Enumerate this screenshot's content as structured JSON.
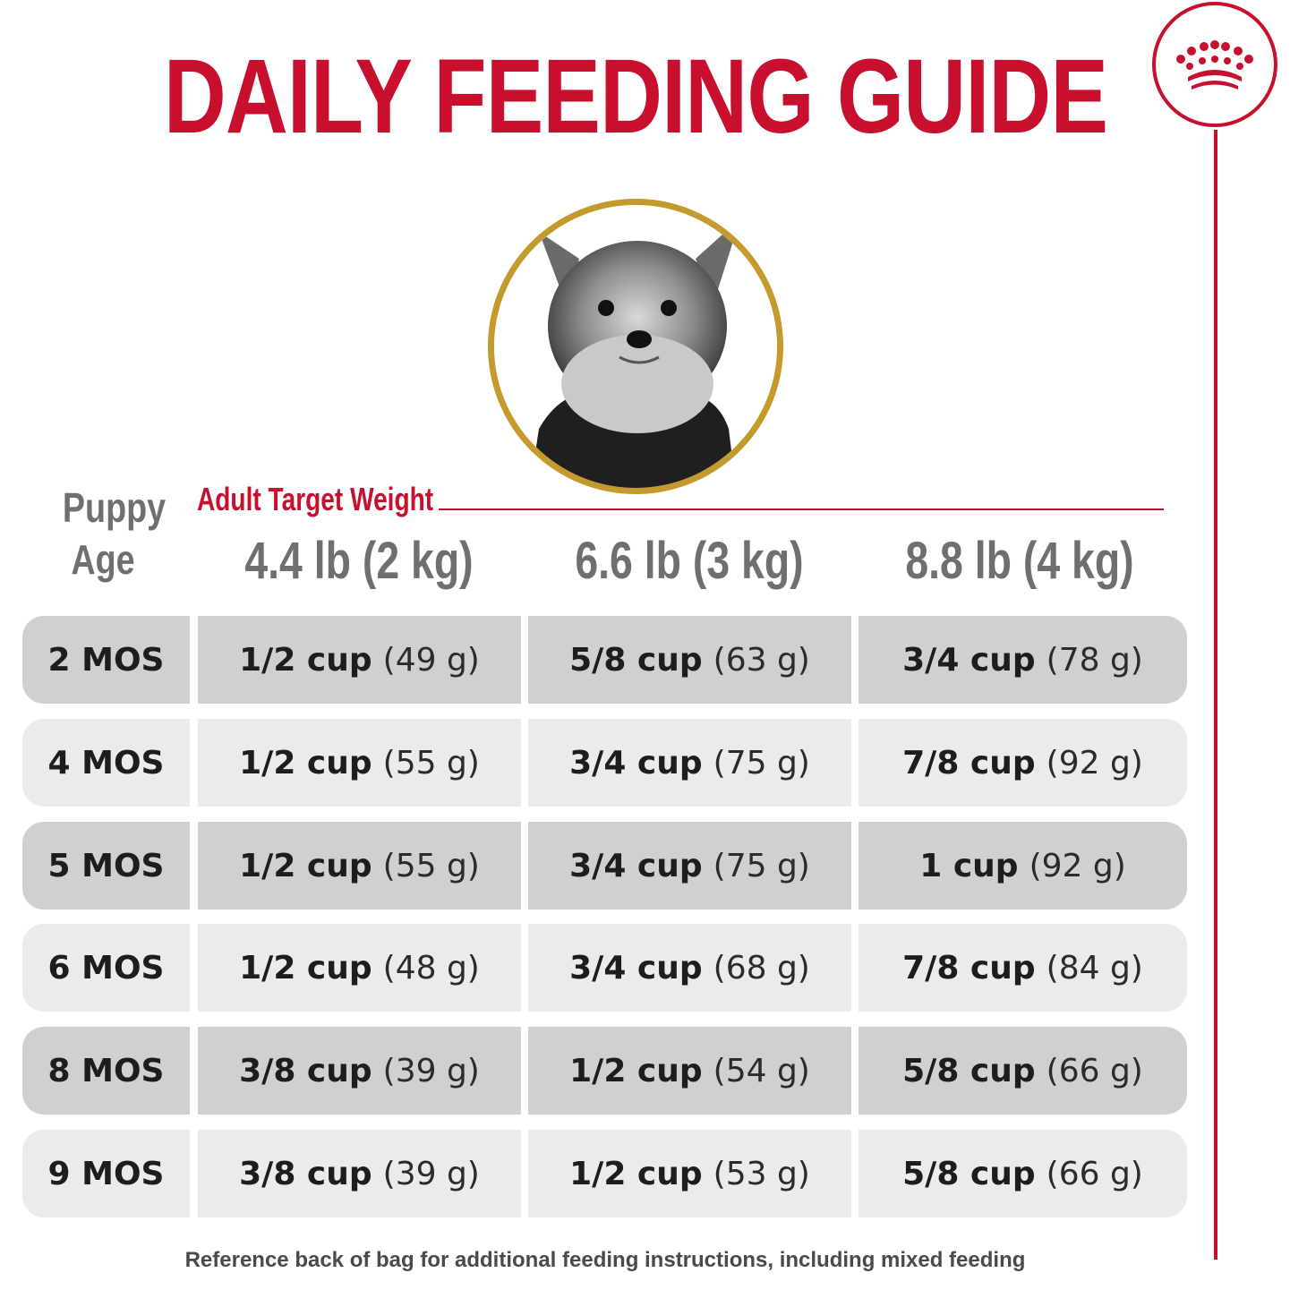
{
  "header": {
    "title": "DAILY FEEDING GUIDE"
  },
  "brand": {
    "logo_icon": "crown-icon",
    "color": "#c8102e"
  },
  "photo": {
    "icon": "yorkshire-terrier-puppy-photo",
    "frame_color": "#c49a2c"
  },
  "table": {
    "age_header_line1": "Puppy",
    "age_header_line2": "Age",
    "weight_group_label": "Adult Target Weight",
    "columns": [
      "4.4 lb (2 kg)",
      "6.6 lb (3 kg)",
      "8.8 lb (4 kg)"
    ],
    "rows": [
      {
        "age": "2 MOS",
        "cells": [
          {
            "amount": "1/2 cup",
            "grams": "(49 g)"
          },
          {
            "amount": "5/8 cup",
            "grams": "(63 g)"
          },
          {
            "amount": "3/4 cup",
            "grams": "(78 g)"
          }
        ]
      },
      {
        "age": "4 MOS",
        "cells": [
          {
            "amount": "1/2 cup",
            "grams": "(55 g)"
          },
          {
            "amount": "3/4 cup",
            "grams": "(75 g)"
          },
          {
            "amount": "7/8 cup",
            "grams": "(92 g)"
          }
        ]
      },
      {
        "age": "5 MOS",
        "cells": [
          {
            "amount": "1/2 cup",
            "grams": "(55 g)"
          },
          {
            "amount": "3/4 cup",
            "grams": "(75 g)"
          },
          {
            "amount": "1 cup",
            "grams": "(92 g)"
          }
        ]
      },
      {
        "age": "6 MOS",
        "cells": [
          {
            "amount": "1/2 cup",
            "grams": "(48 g)"
          },
          {
            "amount": "3/4 cup",
            "grams": "(68 g)"
          },
          {
            "amount": "7/8 cup",
            "grams": "(84 g)"
          }
        ]
      },
      {
        "age": "8 MOS",
        "cells": [
          {
            "amount": "3/8 cup",
            "grams": "(39 g)"
          },
          {
            "amount": "1/2 cup",
            "grams": "(54 g)"
          },
          {
            "amount": "5/8 cup",
            "grams": "(66 g)"
          }
        ]
      },
      {
        "age": "9 MOS",
        "cells": [
          {
            "amount": "3/8 cup",
            "grams": "(39 g)"
          },
          {
            "amount": "1/2 cup",
            "grams": "(53 g)"
          },
          {
            "amount": "5/8 cup",
            "grams": "(66 g)"
          }
        ]
      }
    ]
  },
  "footnote": "Reference back of bag for additional feeding instructions, including mixed feeding"
}
